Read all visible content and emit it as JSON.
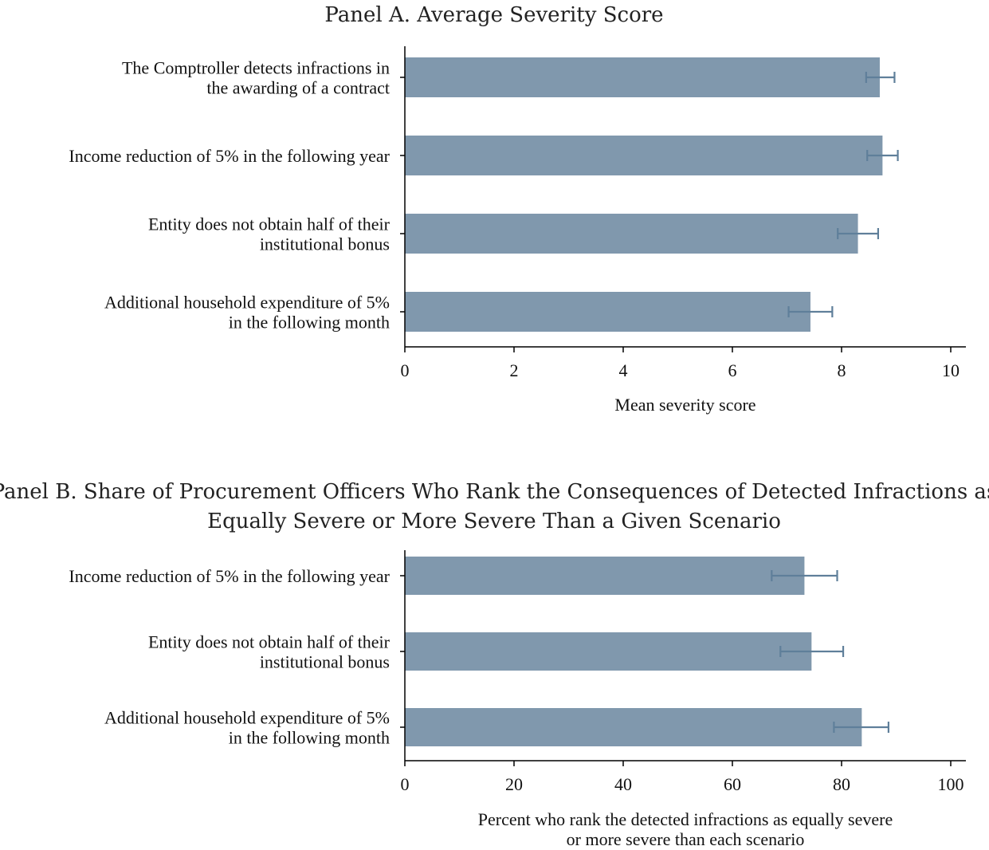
{
  "colors": {
    "bar": "#8098ad",
    "error_bar": "#5f7f9a",
    "axis": "#000000"
  },
  "chart_data": [
    {
      "type": "bar",
      "orientation": "horizontal",
      "title": "Panel A. Average Severity Score",
      "categories": [
        [
          "The Comptroller detects infractions in",
          "the awarding of a contract"
        ],
        [
          "Income reduction of 5% in the following year"
        ],
        [
          "Entity does not obtain half of their",
          "institutional bonus"
        ],
        [
          "Additional household expenditure of 5%",
          "in the following month"
        ]
      ],
      "values": [
        8.7,
        8.75,
        8.3,
        7.43
      ],
      "ci_low": [
        8.45,
        8.47,
        7.93,
        7.03
      ],
      "ci_high": [
        8.97,
        9.03,
        8.67,
        7.83
      ],
      "xlabel": [
        "Mean severity score"
      ],
      "xlim": [
        0,
        10
      ],
      "xticks": [
        0,
        2,
        4,
        6,
        8,
        10
      ],
      "grid": false
    },
    {
      "type": "bar",
      "orientation": "horizontal",
      "title": [
        "Panel B. Share of Procurement Officers Who Rank the Consequences of Detected Infractions as",
        "Equally Severe or More Severe Than a Given Scenario"
      ],
      "categories": [
        [
          "Income reduction of 5% in the following year"
        ],
        [
          "Entity does not obtain half of their",
          "institutional bonus"
        ],
        [
          "Additional household expenditure of 5%",
          "in the following month"
        ]
      ],
      "values": [
        73.2,
        74.5,
        83.7
      ],
      "ci_low": [
        67.2,
        68.8,
        78.6
      ],
      "ci_high": [
        79.2,
        80.3,
        88.6
      ],
      "xlabel": [
        "Percent who rank the detected infractions as equally severe",
        "or more severe than each scenario"
      ],
      "xlim": [
        0,
        100
      ],
      "xticks": [
        0,
        20,
        40,
        60,
        80,
        100
      ],
      "grid": false
    }
  ]
}
